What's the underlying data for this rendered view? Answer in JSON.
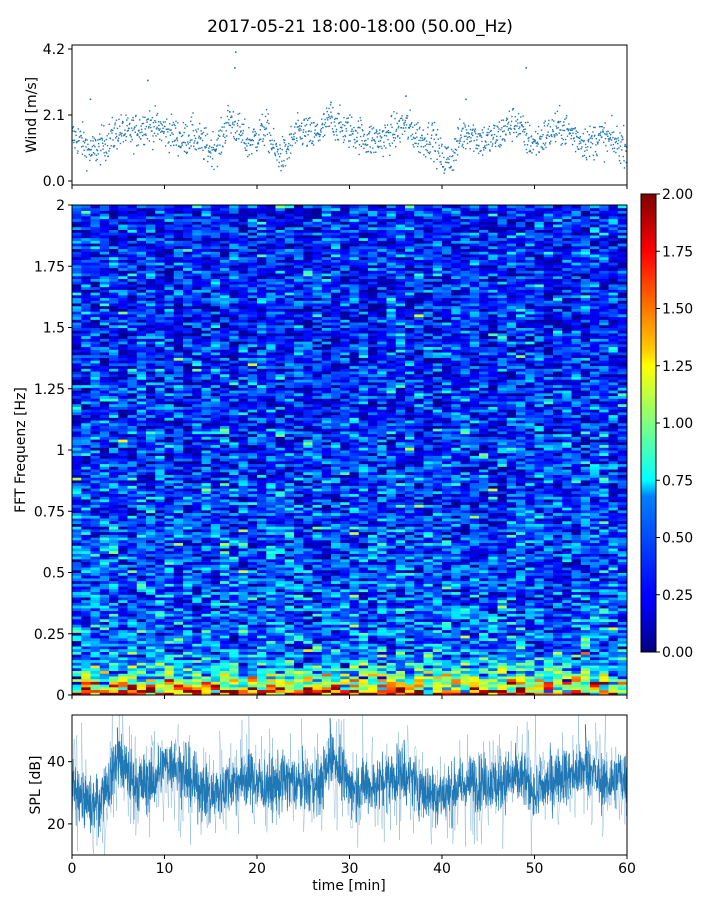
{
  "figure": {
    "title": "2017-05-21 18:00-18:00 (50.00_Hz)"
  },
  "chart_data": [
    {
      "type": "scatter",
      "panel": "wind",
      "ylabel": "Wind [m/s]",
      "xlim": [
        0,
        60
      ],
      "ylim": [
        0,
        4.2
      ],
      "yticks": [
        "0.0",
        "2.1",
        "4.2"
      ],
      "series_color": "#1f77b4",
      "series": [
        {
          "x": [
            0,
            1,
            2,
            3,
            4,
            5,
            6,
            7,
            8,
            9,
            10,
            11,
            12,
            13,
            14,
            15,
            16,
            17,
            18,
            19,
            20,
            21,
            22,
            23,
            24,
            25,
            26,
            27,
            28,
            29,
            30,
            31,
            32,
            33,
            34,
            35,
            36,
            37,
            38,
            39,
            40,
            41,
            42,
            43,
            44,
            45,
            46,
            47,
            48,
            49,
            50,
            51,
            52,
            53,
            54,
            55,
            56,
            57,
            58,
            59,
            60
          ],
          "y": [
            1.4,
            1.3,
            0.9,
            1.1,
            1.3,
            1.6,
            1.5,
            1.6,
            1.8,
            1.7,
            1.6,
            1.5,
            1.3,
            1.5,
            1.2,
            1.0,
            1.2,
            2.0,
            1.6,
            1.2,
            1.4,
            1.7,
            0.9,
            0.8,
            1.4,
            1.6,
            1.4,
            1.6,
            2.0,
            1.7,
            1.6,
            1.5,
            1.3,
            1.3,
            1.4,
            1.6,
            1.8,
            1.5,
            1.3,
            1.4,
            0.7,
            0.7,
            1.4,
            1.6,
            1.3,
            1.3,
            1.4,
            1.7,
            1.9,
            1.4,
            1.2,
            1.4,
            1.6,
            1.7,
            1.5,
            1.3,
            1.2,
            1.4,
            1.3,
            1.2,
            1.1
          ]
        }
      ],
      "peaks": [
        {
          "x": 2.0,
          "y": 2.6
        },
        {
          "x": 8.2,
          "y": 3.2
        },
        {
          "x": 17.7,
          "y": 4.1
        },
        {
          "x": 17.6,
          "y": 3.6
        },
        {
          "x": 28.0,
          "y": 2.5
        },
        {
          "x": 36.1,
          "y": 2.7
        },
        {
          "x": 49.1,
          "y": 3.6
        },
        {
          "x": 42.6,
          "y": 2.6
        }
      ]
    },
    {
      "type": "heatmap",
      "panel": "spectrogram",
      "ylabel": "FFT Frequenz [Hz]",
      "xlim": [
        0,
        60
      ],
      "ylim": [
        0,
        2
      ],
      "yticks": [
        "0",
        "0.25",
        "0.5",
        "0.75",
        "1",
        "1.25",
        "1.5",
        "1.75",
        "2"
      ],
      "colormap": "jet",
      "colorbar": {
        "range": [
          0,
          2
        ],
        "ticks": [
          "0.00",
          "0.25",
          "0.50",
          "0.75",
          "1.00",
          "1.25",
          "1.50",
          "1.75",
          "2.00"
        ]
      },
      "frequency_profile": {
        "freq": [
          0,
          0.02,
          0.05,
          0.08,
          0.12,
          0.2,
          0.3,
          0.5,
          0.75,
          1.0,
          1.5,
          2.0
        ],
        "mean_value": [
          1.8,
          1.4,
          1.0,
          0.8,
          0.6,
          0.45,
          0.42,
          0.38,
          0.36,
          0.33,
          0.3,
          0.3
        ]
      }
    },
    {
      "type": "line",
      "panel": "spl",
      "xlabel": "time [min]",
      "ylabel": "SPL [dB]",
      "xlim": [
        0,
        60
      ],
      "ylim": [
        10,
        55
      ],
      "yticks": [
        "20",
        "40"
      ],
      "xticks": [
        "0",
        "10",
        "20",
        "30",
        "40",
        "50",
        "60"
      ],
      "series_color": "#1f77b4",
      "series": [
        {
          "x": [
            0,
            1,
            2,
            3,
            4,
            5,
            6,
            7,
            8,
            9,
            10,
            11,
            12,
            13,
            14,
            15,
            16,
            17,
            18,
            19,
            20,
            21,
            22,
            23,
            24,
            25,
            26,
            27,
            28,
            29,
            30,
            31,
            32,
            33,
            34,
            35,
            36,
            37,
            38,
            39,
            40,
            41,
            42,
            43,
            44,
            45,
            46,
            47,
            48,
            49,
            50,
            51,
            52,
            53,
            54,
            55,
            56,
            57,
            58,
            59,
            60
          ],
          "y": [
            32,
            30,
            25,
            27,
            33,
            42,
            36,
            32,
            33,
            35,
            38,
            40,
            36,
            33,
            31,
            29,
            31,
            33,
            34,
            35,
            33,
            32,
            32,
            34,
            33,
            33,
            32,
            33,
            42,
            38,
            31,
            32,
            33,
            32,
            34,
            35,
            36,
            33,
            31,
            29,
            30,
            30,
            32,
            33,
            33,
            34,
            33,
            34,
            35,
            34,
            30,
            32,
            34,
            36,
            35,
            37,
            38,
            34,
            33,
            35,
            34
          ]
        }
      ],
      "peaks": [
        {
          "x": 4.9,
          "y": 51
        },
        {
          "x": 12.3,
          "y": 46
        },
        {
          "x": 27.9,
          "y": 54
        },
        {
          "x": 35.9,
          "y": 47
        },
        {
          "x": 55.5,
          "y": 52
        }
      ]
    }
  ]
}
